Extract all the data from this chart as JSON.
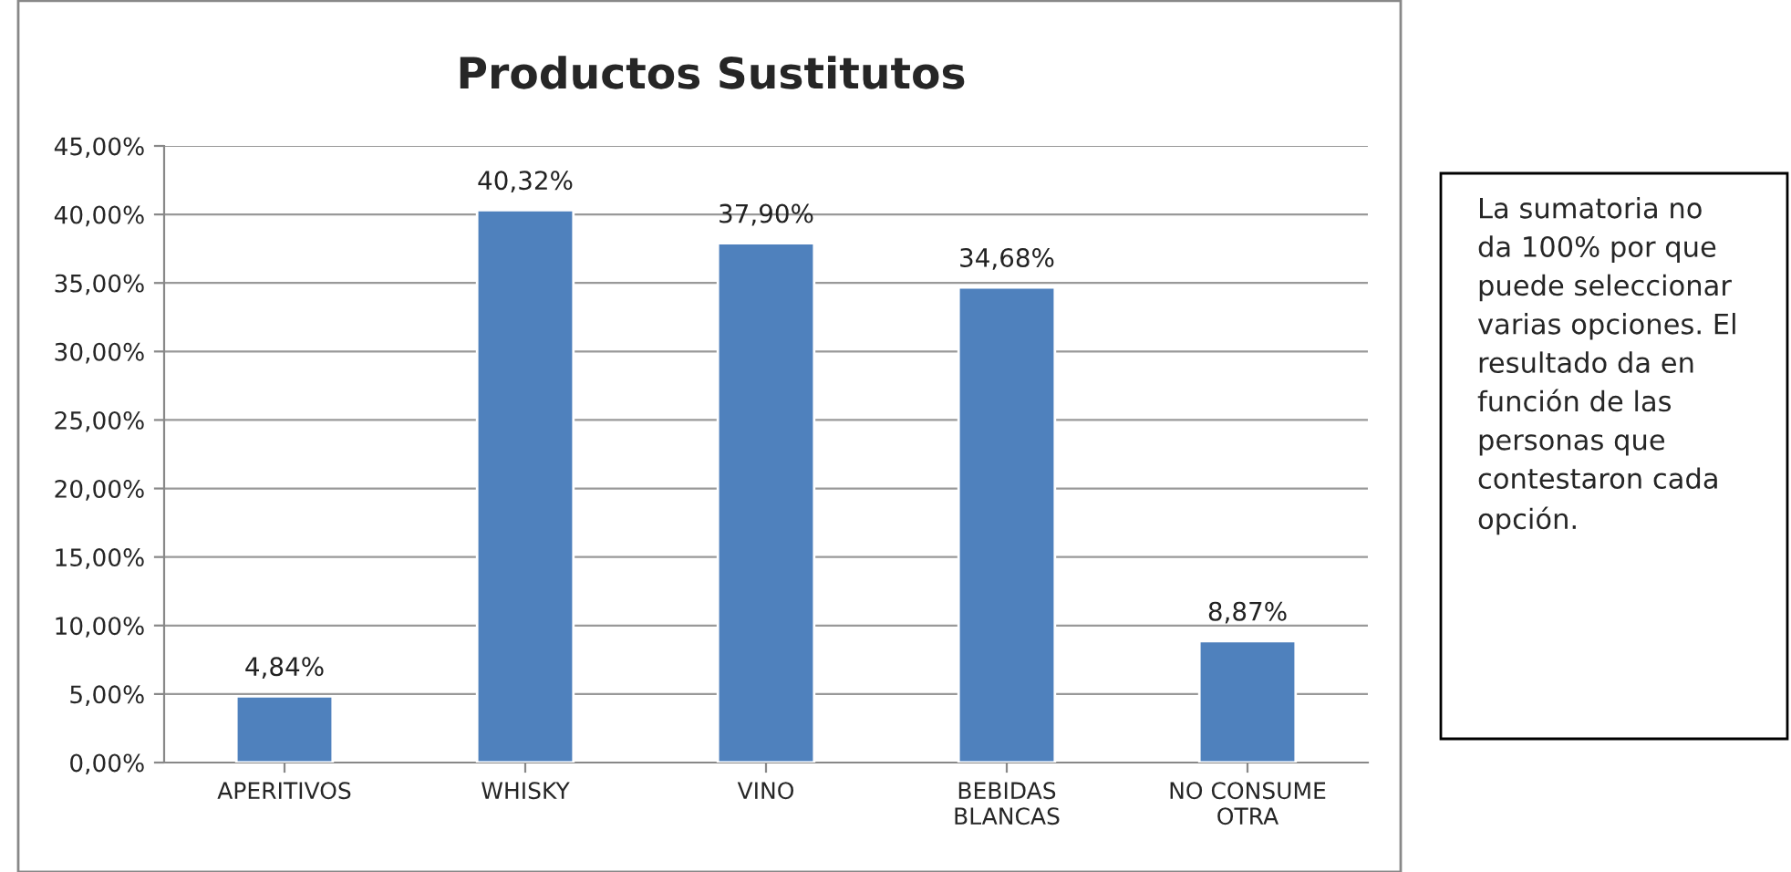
{
  "chart_data": {
    "type": "bar",
    "title": "Productos Sustitutos",
    "categories": [
      "APERITIVOS",
      "WHISKY",
      "VINO",
      "BEBIDAS\nBLANCAS",
      "NO CONSUME\nOTRA"
    ],
    "values": [
      4.84,
      40.32,
      37.9,
      34.68,
      8.87
    ],
    "value_labels": [
      "4,84%",
      "40,32%",
      "37,90%",
      "34,68%",
      "8,87%"
    ],
    "color": "#4f81bd",
    "ylim": [
      0,
      45
    ],
    "yticks": [
      {
        "value": 0,
        "label": "0,00%"
      },
      {
        "value": 5,
        "label": "5,00%"
      },
      {
        "value": 10,
        "label": "10,00%"
      },
      {
        "value": 15,
        "label": "15,00%"
      },
      {
        "value": 20,
        "label": "20,00%"
      },
      {
        "value": 25,
        "label": "25,00%"
      },
      {
        "value": 30,
        "label": "30,00%"
      },
      {
        "value": 35,
        "label": "35,00%"
      },
      {
        "value": 40,
        "label": "40,00%"
      },
      {
        "value": 45,
        "label": "45,00%"
      }
    ],
    "grid": "y",
    "annotations": [
      "La sumatoria no\nda 100% por que\npuede seleccionar\nvarias opciones. El\nresultado da en\nfunción de las\npersonas que\ncontestaron cada\nopción."
    ]
  }
}
